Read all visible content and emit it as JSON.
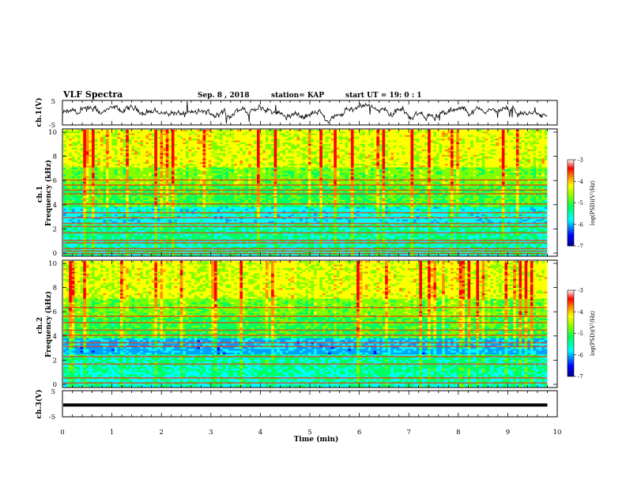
{
  "header": {
    "title": "VLF Spectra",
    "date": "Sep. 8 , 2018",
    "station": "station= KAP",
    "start": "start UT =  19: 0  : 1"
  },
  "chart_data": [
    {
      "type": "line",
      "name": "ch1-waveform",
      "ylabel": "ch.1(V)",
      "ylim": [
        -5,
        5
      ],
      "yticks": [
        "5",
        "-5"
      ],
      "xlim": [
        0,
        10
      ],
      "data_extent_min": 9.8
    },
    {
      "type": "heatmap",
      "name": "ch1-spectrogram",
      "ylabel": "ch.1\nFrequency (kHz)",
      "ylim": [
        0,
        10
      ],
      "yticks": [
        "0",
        "2",
        "4",
        "6",
        "8",
        "10"
      ],
      "colorbar": {
        "label": "log(PSD)(V²/Hz)",
        "range": [
          -7,
          -3
        ],
        "ticks": [
          "-3",
          "-4",
          "-5",
          "-6",
          "-7"
        ]
      },
      "bands_khz": [
        0.15,
        0.35,
        0.55,
        1.0,
        1.2,
        1.8,
        2.3,
        2.55,
        3.0,
        3.4,
        4.1,
        4.9,
        5.2,
        5.6,
        6.0
      ]
    },
    {
      "type": "heatmap",
      "name": "ch2-spectrogram",
      "ylabel": "ch.2\nFrequency (kHz)",
      "ylim": [
        0,
        10
      ],
      "yticks": [
        "0",
        "2",
        "4",
        "6",
        "8",
        "10"
      ],
      "colorbar": {
        "label": "log(PSD)(V²/Hz)",
        "range": [
          -7,
          -3
        ],
        "ticks": [
          "-3",
          "-4",
          "-5",
          "-6",
          "-7"
        ]
      },
      "bands_khz": [
        0.3,
        0.7,
        1.8,
        2.4,
        3.2,
        3.5,
        4.1,
        4.5,
        5.1,
        5.6,
        6.3
      ]
    },
    {
      "type": "line",
      "name": "ch3-waveform",
      "ylabel": "ch.3(V)",
      "ylim": [
        -5,
        5
      ],
      "yticks": [
        "5",
        "-5"
      ],
      "value_v": -0.5
    }
  ],
  "xaxis": {
    "label": "Time (min)",
    "ticks": [
      "0",
      "1",
      "2",
      "3",
      "4",
      "5",
      "6",
      "7",
      "8",
      "9",
      "10"
    ]
  },
  "colors": {
    "palette": [
      "#000090",
      "#0000ff",
      "#00a0ff",
      "#00ffff",
      "#00ff60",
      "#80ff00",
      "#ffff00",
      "#ff9000",
      "#ff0000",
      "#ffffff"
    ]
  }
}
